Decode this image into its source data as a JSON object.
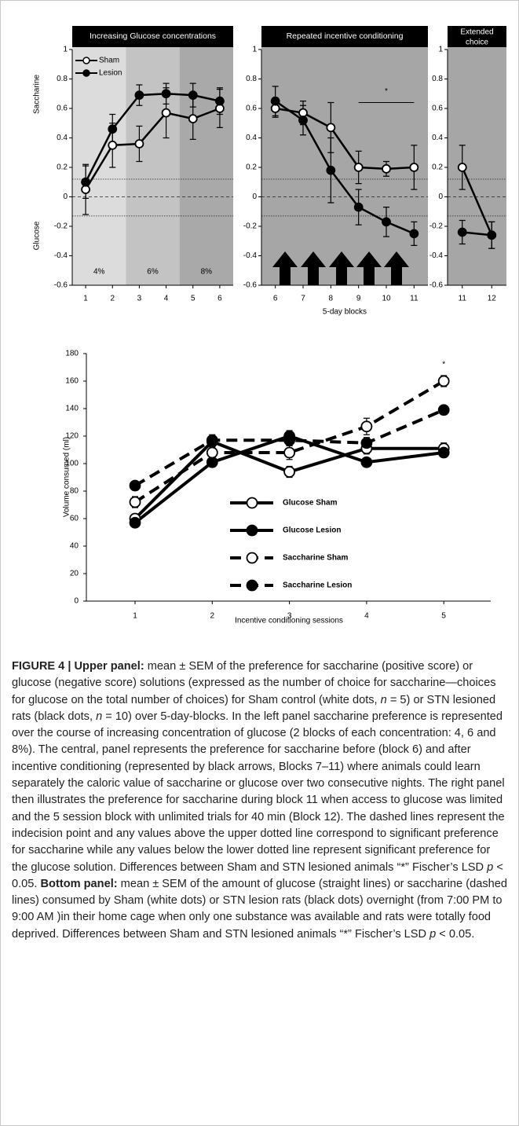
{
  "chart_data": [
    {
      "type": "line",
      "title": "Increasing Glucose concentrations",
      "ylabel": [
        "Saccharine",
        "Glucose"
      ],
      "categories": [
        1,
        2,
        3,
        4,
        5,
        6
      ],
      "series": [
        {
          "name": "Sham",
          "color": "#000000",
          "marker_fill": "#ffffff",
          "values": [
            0.05,
            0.35,
            0.36,
            0.57,
            0.53,
            0.6
          ],
          "errors": [
            0.17,
            0.15,
            0.12,
            0.17,
            0.14,
            0.13
          ]
        },
        {
          "name": "Lesion",
          "color": "#000000",
          "marker_fill": "#000000",
          "values": [
            0.1,
            0.46,
            0.69,
            0.7,
            0.69,
            0.65
          ],
          "errors": [
            0.11,
            0.1,
            0.07,
            0.07,
            0.08,
            0.09
          ]
        }
      ],
      "ylim": [
        -0.6,
        1
      ],
      "yticks": [
        -0.6,
        -0.4,
        -0.2,
        0,
        0.2,
        0.4,
        0.6,
        0.8,
        1
      ],
      "hlines": [
        {
          "value": 0.12,
          "style": "dotted"
        },
        {
          "value": 0,
          "style": "dashed"
        },
        {
          "value": -0.13,
          "style": "dotted"
        }
      ],
      "band_labels": [
        "4%",
        "6%",
        "8%"
      ],
      "band_colors": [
        "#dcdcdc",
        "#c3c3c3",
        "#a9a9a9"
      ]
    },
    {
      "type": "line",
      "title": "Repeated incentive conditioning",
      "xlabel": "5-day blocks",
      "background": "#a6a6a6",
      "categories": [
        6,
        7,
        8,
        9,
        10,
        11
      ],
      "series": [
        {
          "name": "Sham",
          "color": "#000000",
          "marker_fill": "#ffffff",
          "values": [
            0.6,
            0.57,
            0.47,
            0.2,
            0.19,
            0.2
          ],
          "errors": [
            0.06,
            0.08,
            0.17,
            0.11,
            0.05,
            0.15
          ]
        },
        {
          "name": "Lesion",
          "color": "#000000",
          "marker_fill": "#000000",
          "values": [
            0.65,
            0.52,
            0.18,
            -0.07,
            -0.17,
            -0.25
          ],
          "errors": [
            0.1,
            0.1,
            0.22,
            0.12,
            0.1,
            0.08
          ]
        }
      ],
      "ylim": [
        -0.6,
        1
      ],
      "yticks": [
        -0.6,
        -0.4,
        -0.2,
        0,
        0.2,
        0.4,
        0.6,
        0.8,
        1
      ],
      "hlines": [
        {
          "value": 0.12,
          "style": "dotted"
        },
        {
          "value": 0,
          "style": "dashed"
        },
        {
          "value": -0.13,
          "style": "dotted"
        }
      ],
      "significance": {
        "text": "*",
        "from": 9,
        "to": 11,
        "value": 0.64
      }
    },
    {
      "type": "line",
      "title": [
        "Extended",
        "choice"
      ],
      "background": "#a6a6a6",
      "categories": [
        11,
        12
      ],
      "series": [
        {
          "name": "Sham",
          "color": "#000000",
          "marker_fill": "#ffffff",
          "values": [
            0.2,
            -0.26
          ],
          "errors": [
            0.15,
            0.09
          ]
        },
        {
          "name": "Lesion",
          "color": "#000000",
          "marker_fill": "#000000",
          "values": [
            -0.24,
            -0.26
          ],
          "errors": [
            0.08,
            0.09
          ]
        }
      ],
      "ylim": [
        -0.6,
        1
      ],
      "yticks": [
        -0.6,
        -0.4,
        -0.2,
        0,
        0.2,
        0.4,
        0.6,
        0.8,
        1
      ],
      "hlines": [
        {
          "value": 0.12,
          "style": "dotted"
        },
        {
          "value": 0,
          "style": "dashed"
        },
        {
          "value": -0.13,
          "style": "dotted"
        }
      ]
    },
    {
      "type": "line",
      "xlabel": "Incentive conditioning sessions",
      "ylabel": "Volume consumed (ml)",
      "categories": [
        1,
        2,
        3,
        4,
        5
      ],
      "series": [
        {
          "name": "Glucose Sham",
          "color": "#000000",
          "marker_fill": "#ffffff",
          "dashed": false,
          "values": [
            60,
            116,
            94,
            111,
            111
          ],
          "errors": [
            3,
            4,
            4,
            4,
            4
          ]
        },
        {
          "name": "Glucose Lesion",
          "color": "#000000",
          "marker_fill": "#000000",
          "dashed": false,
          "values": [
            57,
            101,
            120,
            101,
            108
          ],
          "errors": [
            3,
            3,
            4,
            3,
            3
          ]
        },
        {
          "name": "Saccharine Sham",
          "color": "#000000",
          "marker_fill": "#ffffff",
          "dashed": true,
          "values": [
            72,
            108,
            108,
            127,
            160
          ],
          "errors": [
            4,
            4,
            5,
            6,
            4
          ]
        },
        {
          "name": "Saccharine Lesion",
          "color": "#000000",
          "marker_fill": "#000000",
          "dashed": true,
          "values": [
            84,
            117,
            117,
            115,
            139
          ],
          "errors": [
            3,
            4,
            4,
            4,
            3
          ]
        }
      ],
      "ylim": [
        0,
        180
      ],
      "yticks": [
        0,
        20,
        40,
        60,
        80,
        100,
        120,
        140,
        160,
        180
      ],
      "significance": {
        "text": "*",
        "category": 5,
        "value": 172
      }
    }
  ],
  "caption": [
    {
      "text": "FIGURE 4 | Upper panel:",
      "bold": true
    },
    {
      "text": " mean ± SEM of the preference for saccharine (positive score) or glucose (negative score) solutions (expressed as the number of choice for saccharine—choices for glucose on the total number of choices) for Sham control (white dots, "
    },
    {
      "text": "n",
      "italic": true
    },
    {
      "text": " = 5) or STN lesioned rats (black dots, "
    },
    {
      "text": "n",
      "italic": true
    },
    {
      "text": " = 10) over 5-day-blocks. In the left panel saccharine preference is represented over the course of increasing concentration of glucose (2 blocks of each concentration: 4, 6 and 8%). The central, panel represents the preference for saccharine before (block 6) and after incentive conditioning (represented by black arrows, Blocks 7–11) where animals could learn separately the caloric value of saccharine or glucose over two consecutive nights. The right panel then illustrates the preference for saccharine during block 11 when access to glucose was limited and the 5 session block with unlimited trials for 40 min (Block 12). The dashed lines represent the indecision point and any values above the upper dotted line correspond to significant preference for saccharine while any values below the lower dotted line represent significant preference for the glucose solution. Differences between Sham and STN lesioned animals “*” Fischer’s LSD "
    },
    {
      "text": "p",
      "italic": true
    },
    {
      "text": " < 0.05. "
    },
    {
      "text": "Bottom panel:",
      "bold": true
    },
    {
      "text": " mean ± SEM of the amount of glucose (straight lines) or saccharine (dashed lines) consumed by Sham (white dots) or STN lesion rats (black dots) overnight (from 7:00 PM to 9:00 AM )in their home cage when only one substance was available and rats were totally food deprived. Differences between Sham and STN lesioned animals “*” Fischer’s LSD "
    },
    {
      "text": "p",
      "italic": true
    },
    {
      "text": " < 0.05."
    }
  ]
}
